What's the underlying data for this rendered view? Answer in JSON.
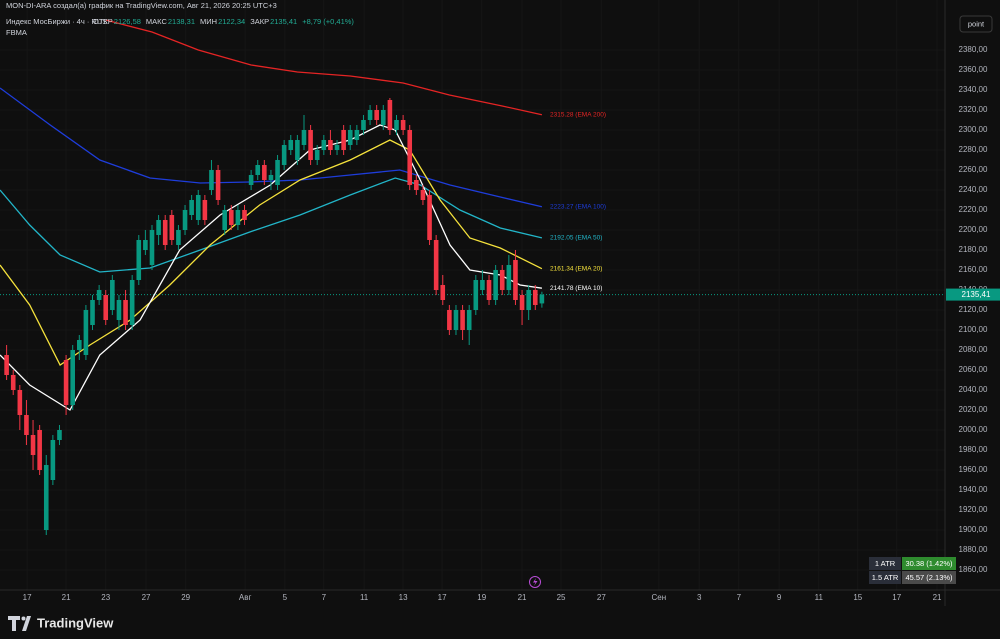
{
  "header": {
    "byline": "MON-DI-ARA создал(а) график на TradingView.com, Авг 21, 2026 20:25 UTC+3",
    "symbol": "Индекс МосБиржи · 4ч · RUS",
    "ohlc": [
      {
        "label": "ОТКР",
        "value": "2126,58"
      },
      {
        "label": "МАКС",
        "value": "2138,31"
      },
      {
        "label": "МИН",
        "value": "2122,34"
      },
      {
        "label": "ЗАКР",
        "value": "2135,41"
      }
    ],
    "change": "+8,79 (+0,41%)",
    "indicator": "FBMA",
    "button": "point"
  },
  "atr": [
    {
      "label": "1 ATR",
      "value": "30.38 (1.42%)"
    },
    {
      "label": "1.5 ATR",
      "value": "45.57 (2.13%)"
    }
  ],
  "footer": {
    "brand": "TradingView"
  },
  "chart_data": {
    "type": "candlestick",
    "up_color": "#089981",
    "down_color": "#f23645",
    "open": [
      2075,
      2055,
      2040,
      2015,
      1995,
      2000,
      1900,
      1950,
      1990,
      2070,
      2025,
      2080,
      2075,
      2105,
      2130,
      2135,
      2120,
      2110,
      2130,
      2105,
      2150,
      2180,
      2165,
      2195,
      2210,
      2215,
      2185,
      2200,
      2215,
      2210,
      2230,
      2240,
      2260,
      2200,
      2220,
      2205,
      2220,
      2245,
      2255,
      2265,
      2250,
      2245,
      2265,
      2280,
      2270,
      2285,
      2300,
      2270,
      2280,
      2290,
      2280,
      2300,
      2285,
      2290,
      2300,
      2310,
      2320,
      2305,
      2330,
      2300,
      2310,
      2300,
      2250,
      2240,
      2235,
      2190,
      2145,
      2120,
      2100,
      2120,
      2100,
      2120,
      2140,
      2150,
      2130,
      2160,
      2140,
      2170,
      2135,
      2120,
      2140,
      2126.58
    ],
    "high": [
      2085,
      2060,
      2045,
      2030,
      2010,
      2005,
      1975,
      1995,
      2005,
      2075,
      2085,
      2095,
      2125,
      2135,
      2145,
      2140,
      2155,
      2135,
      2140,
      2155,
      2195,
      2200,
      2205,
      2215,
      2215,
      2220,
      2205,
      2225,
      2235,
      2240,
      2235,
      2270,
      2265,
      2225,
      2225,
      2225,
      2225,
      2260,
      2270,
      2270,
      2260,
      2275,
      2290,
      2295,
      2295,
      2315,
      2305,
      2285,
      2295,
      2300,
      2290,
      2305,
      2305,
      2305,
      2315,
      2325,
      2325,
      2325,
      2332,
      2315,
      2315,
      2305,
      2255,
      2245,
      2240,
      2195,
      2155,
      2125,
      2125,
      2125,
      2125,
      2155,
      2160,
      2155,
      2165,
      2165,
      2175,
      2180,
      2140,
      2145,
      2145,
      2138.31
    ],
    "low": [
      2050,
      2035,
      2000,
      1985,
      1960,
      1955,
      1895,
      1945,
      1985,
      2015,
      2020,
      2070,
      2070,
      2100,
      2125,
      2105,
      2115,
      2100,
      2100,
      2100,
      2145,
      2175,
      2160,
      2185,
      2180,
      2185,
      2180,
      2195,
      2210,
      2205,
      2205,
      2235,
      2225,
      2195,
      2200,
      2200,
      2205,
      2240,
      2250,
      2245,
      2240,
      2240,
      2260,
      2275,
      2265,
      2280,
      2265,
      2265,
      2275,
      2275,
      2275,
      2275,
      2280,
      2285,
      2295,
      2305,
      2305,
      2300,
      2295,
      2295,
      2295,
      2240,
      2235,
      2225,
      2185,
      2135,
      2125,
      2095,
      2095,
      2090,
      2085,
      2115,
      2135,
      2125,
      2125,
      2135,
      2135,
      2125,
      2105,
      2110,
      2120,
      2122.34
    ],
    "close": [
      2055,
      2040,
      2015,
      1995,
      1975,
      1960,
      1965,
      1990,
      2000,
      2025,
      2080,
      2090,
      2120,
      2130,
      2140,
      2110,
      2150,
      2130,
      2105,
      2150,
      2190,
      2190,
      2200,
      2210,
      2185,
      2190,
      2200,
      2220,
      2230,
      2235,
      2210,
      2260,
      2230,
      2220,
      2205,
      2220,
      2210,
      2255,
      2265,
      2250,
      2255,
      2270,
      2285,
      2290,
      2290,
      2300,
      2270,
      2280,
      2290,
      2280,
      2285,
      2280,
      2300,
      2300,
      2310,
      2320,
      2310,
      2320,
      2300,
      2310,
      2300,
      2245,
      2240,
      2230,
      2190,
      2140,
      2130,
      2100,
      2120,
      2100,
      2120,
      2150,
      2150,
      2130,
      2160,
      2140,
      2165,
      2130,
      2120,
      2140,
      2125,
      2135.41
    ],
    "series": [
      {
        "color": "#e52424",
        "label": "2315.28 (EMA 200)",
        "x": [
          15,
          22,
          29,
          37,
          44,
          52,
          60,
          67,
          75,
          81
        ],
        "values": [
          2410,
          2398,
          2380,
          2365,
          2358,
          2354,
          2347,
          2335,
          2324,
          2315.28
        ]
      },
      {
        "color": "#1e3ddb",
        "label": "2223.27 (EMA 100)",
        "x": [
          -1,
          6.6,
          14.1,
          21.7,
          29.3,
          36.8,
          44.4,
          52,
          59.5,
          67.1,
          74.7,
          81
        ],
        "values": [
          2342,
          2305,
          2270,
          2252,
          2247,
          2248,
          2250,
          2255,
          2260,
          2245,
          2233,
          2223.27
        ]
      },
      {
        "color": "#22b5c8",
        "label": "2192.05 (EMA 50)",
        "x": [
          -1,
          3.5,
          8.1,
          14.1,
          21.7,
          29.3,
          36.8,
          44.4,
          52,
          58.8,
          62.6,
          68.6,
          74.7,
          81
        ],
        "values": [
          2240,
          2205,
          2175,
          2158,
          2162,
          2180,
          2198,
          2215,
          2235,
          2252,
          2245,
          2220,
          2202,
          2192.05
        ]
      },
      {
        "color": "#f5e23c",
        "label": "2161.34 (EMA 20)",
        "x": [
          -1,
          3.5,
          8.1,
          12.6,
          18.7,
          24.7,
          30.8,
          38.3,
          44.4,
          52,
          58,
          61,
          65.6,
          70.1,
          74.7,
          81
        ],
        "values": [
          2165,
          2125,
          2065,
          2085,
          2110,
          2145,
          2185,
          2225,
          2250,
          2270,
          2290,
          2280,
          2230,
          2192,
          2182,
          2161.34
        ]
      },
      {
        "color": "#ffffff",
        "label": "2141.78 (EMA 10)",
        "x": [
          -1,
          3.5,
          9.6,
          14.1,
          20.2,
          26.2,
          32.3,
          39.9,
          45.9,
          52,
          56.5,
          58.8,
          62.6,
          67.1,
          70.1,
          74.7,
          77.7,
          81
        ],
        "values": [
          2075,
          2045,
          2020,
          2075,
          2110,
          2180,
          2215,
          2245,
          2280,
          2290,
          2305,
          2300,
          2250,
          2185,
          2160,
          2155,
          2145,
          2141.78
        ]
      }
    ],
    "last_price": 2135.41,
    "last_price_label": "2135,41",
    "xlim": [
      -1,
      142
    ],
    "ylim": [
      1840,
      2430
    ],
    "xticks": [
      {
        "value": 3.1,
        "label": "17"
      },
      {
        "value": 9.0,
        "label": "21"
      },
      {
        "value": 15.0,
        "label": "23"
      },
      {
        "value": 21.1,
        "label": "27"
      },
      {
        "value": 27.1,
        "label": "29"
      },
      {
        "value": 36.1,
        "label": "Авг"
      },
      {
        "value": 42.1,
        "label": "5"
      },
      {
        "value": 48.0,
        "label": "7"
      },
      {
        "value": 54.1,
        "label": "11"
      },
      {
        "value": 60.0,
        "label": "13"
      },
      {
        "value": 65.9,
        "label": "17"
      },
      {
        "value": 71.9,
        "label": "19"
      },
      {
        "value": 78.0,
        "label": "21"
      },
      {
        "value": 83.9,
        "label": "25"
      },
      {
        "value": 90.0,
        "label": "27"
      },
      {
        "value": 98.7,
        "label": "Сен"
      },
      {
        "value": 104.8,
        "label": "3"
      },
      {
        "value": 110.8,
        "label": "7"
      },
      {
        "value": 116.9,
        "label": "9"
      },
      {
        "value": 122.9,
        "label": "11"
      },
      {
        "value": 128.8,
        "label": "15"
      },
      {
        "value": 134.7,
        "label": "17"
      },
      {
        "value": 140.8,
        "label": "21"
      }
    ],
    "yticks": [
      {
        "value": 1860,
        "label": "1860,00"
      },
      {
        "value": 1880,
        "label": "1880,00"
      },
      {
        "value": 1900,
        "label": "1900,00"
      },
      {
        "value": 1920,
        "label": "1920,00"
      },
      {
        "value": 1940,
        "label": "1940,00"
      },
      {
        "value": 1960,
        "label": "1960,00"
      },
      {
        "value": 1980,
        "label": "1980,00"
      },
      {
        "value": 2000,
        "label": "2000,00"
      },
      {
        "value": 2020,
        "label": "2020,00"
      },
      {
        "value": 2040,
        "label": "2040,00"
      },
      {
        "value": 2060,
        "label": "2060,00"
      },
      {
        "value": 2080,
        "label": "2080,00"
      },
      {
        "value": 2100,
        "label": "2100,00"
      },
      {
        "value": 2120,
        "label": "2120,00"
      },
      {
        "value": 2140,
        "label": "2140,00"
      },
      {
        "value": 2160,
        "label": "2160,00"
      },
      {
        "value": 2180,
        "label": "2180,00"
      },
      {
        "value": 2200,
        "label": "2200,00"
      },
      {
        "value": 2220,
        "label": "2220,00"
      },
      {
        "value": 2240,
        "label": "2240,00"
      },
      {
        "value": 2260,
        "label": "2260,00"
      },
      {
        "value": 2280,
        "label": "2280,00"
      },
      {
        "value": 2300,
        "label": "2300,00"
      },
      {
        "value": 2320,
        "label": "2320,00"
      },
      {
        "value": 2340,
        "label": "2340,00"
      },
      {
        "value": 2360,
        "label": "2360,00"
      },
      {
        "value": 2380,
        "label": "2380,00"
      }
    ],
    "grid": true
  }
}
